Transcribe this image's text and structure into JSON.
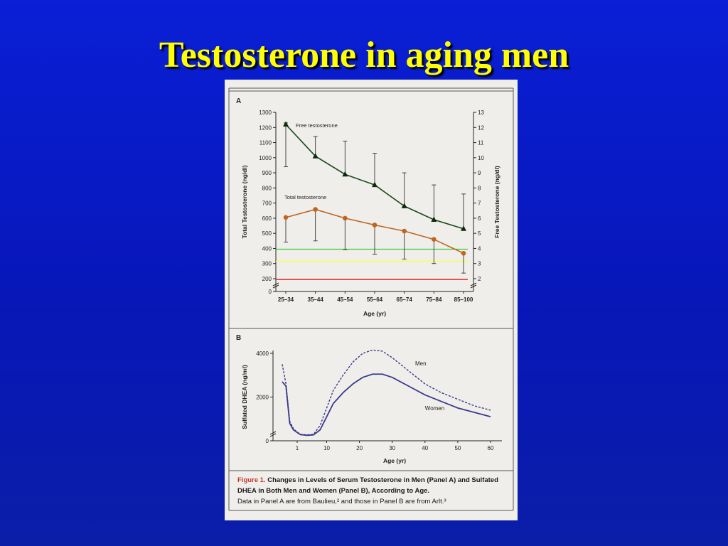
{
  "slide": {
    "title": "Testosterone in aging men"
  },
  "colors": {
    "background": "#0a1fd6",
    "title": "#ffff00",
    "free_series": "#1d4a1d",
    "total_series": "#c0651e",
    "line_green": "#33cc33",
    "line_yellow": "#ffff33",
    "line_red": "#e01010",
    "men_series": "#3a3a8c",
    "women_series": "#3a3a8c"
  },
  "chart_data": [
    {
      "panel_label": "A",
      "type": "line",
      "categories": [
        "25–34",
        "35–44",
        "45–54",
        "55–64",
        "65–74",
        "75–84",
        "85–100"
      ],
      "xlabel": "Age (yr)",
      "ylabel": "Total Testosterone (ng/dl)",
      "ylabel_right": "Free Testosterone (ng/dl)",
      "ylim": [
        0,
        1300
      ],
      "y_ticks": [
        0,
        200,
        300,
        400,
        500,
        600,
        700,
        800,
        900,
        1000,
        1100,
        1200,
        1300
      ],
      "ylim_right": [
        0,
        13
      ],
      "y_ticks_right": [
        2,
        3,
        4,
        5,
        6,
        7,
        8,
        9,
        10,
        11,
        12,
        13
      ],
      "axis_break": true,
      "series": [
        {
          "name": "Free testosterone",
          "axis": "right",
          "marker": "triangle",
          "values": [
            12.2,
            10.1,
            8.9,
            8.2,
            6.8,
            5.9,
            5.3
          ],
          "error_upper": [
            12.3,
            11.4,
            11.1,
            10.3,
            9.0,
            8.2,
            7.6
          ],
          "error_lower": [
            9.4,
            null,
            null,
            null,
            null,
            null,
            null
          ]
        },
        {
          "name": "Total testosterone",
          "axis": "left",
          "marker": "circle",
          "values": [
            605,
            658,
            600,
            555,
            515,
            460,
            368
          ],
          "error_upper": null,
          "error_lower": [
            442,
            450,
            392,
            362,
            330,
            300,
            237
          ]
        }
      ],
      "reference_lines": [
        {
          "color": "green",
          "value": 395
        },
        {
          "color": "yellow",
          "value": 315
        },
        {
          "color": "red",
          "value": 195
        }
      ]
    },
    {
      "panel_label": "B",
      "type": "line",
      "x_ticks": [
        1,
        10,
        20,
        30,
        40,
        50,
        60
      ],
      "xlabel": "Age (yr)",
      "ylabel": "Sulfated DHEA (ng/ml)",
      "ylim": [
        0,
        4000
      ],
      "y_ticks": [
        0,
        2000,
        4000
      ],
      "axis_break": true,
      "series": [
        {
          "name": "Men",
          "style": "dashed",
          "x": [
            0.6,
            0.7,
            0.8,
            0.9,
            1,
            2,
            4,
            6,
            8,
            10,
            12,
            15,
            18,
            21,
            24,
            27,
            30,
            35,
            40,
            45,
            50,
            55,
            60
          ],
          "values": [
            3500,
            2600,
            900,
            550,
            400,
            300,
            270,
            300,
            700,
            1500,
            2300,
            3000,
            3600,
            4000,
            4150,
            4100,
            3800,
            3200,
            2600,
            2200,
            1900,
            1600,
            1400
          ]
        },
        {
          "name": "Women",
          "style": "solid",
          "x": [
            0.6,
            0.7,
            0.8,
            0.9,
            1,
            2,
            4,
            6,
            8,
            10,
            12,
            15,
            18,
            21,
            24,
            27,
            30,
            35,
            40,
            45,
            50,
            55,
            60
          ],
          "values": [
            2700,
            2500,
            800,
            500,
            380,
            280,
            250,
            270,
            500,
            1100,
            1700,
            2200,
            2600,
            2900,
            3050,
            3050,
            2900,
            2500,
            2100,
            1800,
            1500,
            1300,
            1100
          ]
        }
      ]
    }
  ],
  "caption": {
    "fig_num": "Figure 1.",
    "fig_title": "Changes in Levels of Serum Testosterone in Men (Panel A) and Sulfated DHEA in Both Men and Women (Panel B), According to Age.",
    "source_line": "Data in Panel A are from Baulieu,² and those in Panel B are from Arlt.³"
  }
}
